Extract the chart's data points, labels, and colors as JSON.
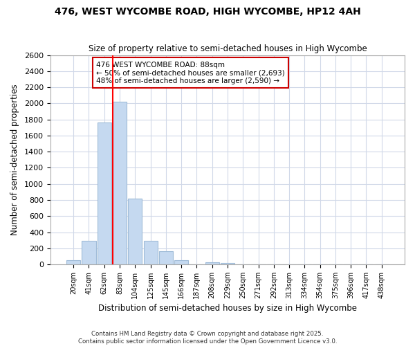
{
  "title": "476, WEST WYCOMBE ROAD, HIGH WYCOMBE, HP12 4AH",
  "subtitle": "Size of property relative to semi-detached houses in High Wycombe",
  "xlabel": "Distribution of semi-detached houses by size in High Wycombe",
  "ylabel": "Number of semi-detached properties",
  "categories": [
    "20sqm",
    "41sqm",
    "62sqm",
    "83sqm",
    "104sqm",
    "125sqm",
    "145sqm",
    "166sqm",
    "187sqm",
    "208sqm",
    "229sqm",
    "250sqm",
    "271sqm",
    "292sqm",
    "313sqm",
    "334sqm",
    "354sqm",
    "375sqm",
    "396sqm",
    "417sqm",
    "438sqm"
  ],
  "values": [
    50,
    290,
    1760,
    2020,
    820,
    290,
    160,
    50,
    0,
    30,
    20,
    0,
    0,
    0,
    0,
    0,
    0,
    0,
    0,
    0,
    0
  ],
  "bar_color": "#c5d9f0",
  "bar_edgecolor": "#a0bcd8",
  "highlight_line_index": 3,
  "property_label": "476 WEST WYCOMBE ROAD: 88sqm",
  "annotation_line1": "← 50% of semi-detached houses are smaller (2,693)",
  "annotation_line2": "48% of semi-detached houses are larger (2,590) →",
  "annotation_box_edgecolor": "#cc0000",
  "ylim": [
    0,
    2600
  ],
  "yticks": [
    0,
    200,
    400,
    600,
    800,
    1000,
    1200,
    1400,
    1600,
    1800,
    2000,
    2200,
    2400,
    2600
  ],
  "grid_color": "#d0d8e8",
  "background_color": "#ffffff",
  "plot_bg_color": "#ffffff",
  "footer_line1": "Contains HM Land Registry data © Crown copyright and database right 2025.",
  "footer_line2": "Contains public sector information licensed under the Open Government Licence v3.0."
}
